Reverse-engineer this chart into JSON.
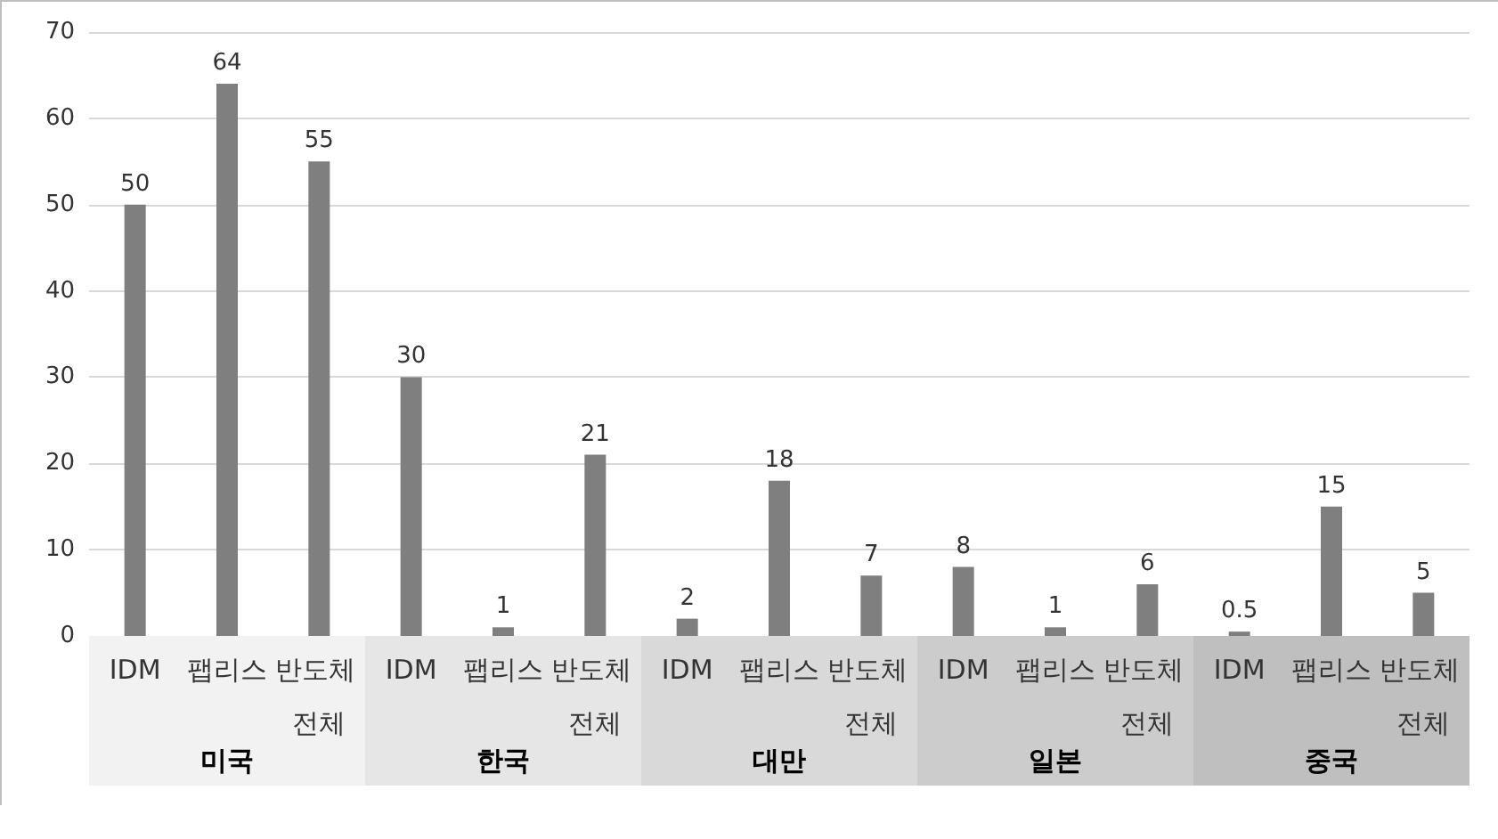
{
  "chart_data": {
    "type": "bar",
    "categories": [
      "IDM",
      "팹리스",
      "반도체 전체",
      "IDM",
      "팹리스",
      "반도체 전체",
      "IDM",
      "팹리스",
      "반도체 전체",
      "IDM",
      "팹리스",
      "반도체 전체",
      "IDM",
      "팹리스",
      "반도체 전체"
    ],
    "values": [
      50,
      64,
      55,
      30,
      1,
      21,
      2,
      18,
      7,
      8,
      1,
      6,
      0.5,
      15,
      5
    ],
    "color": "#7f7f7f",
    "annotations": [
      "미국",
      "한국",
      "대만",
      "일본",
      "중국"
    ],
    "ylim": [
      0,
      70
    ],
    "yticks": [
      0,
      10,
      20,
      30,
      40,
      50,
      60,
      70
    ],
    "grid": "y",
    "data_labels": true
  }
}
